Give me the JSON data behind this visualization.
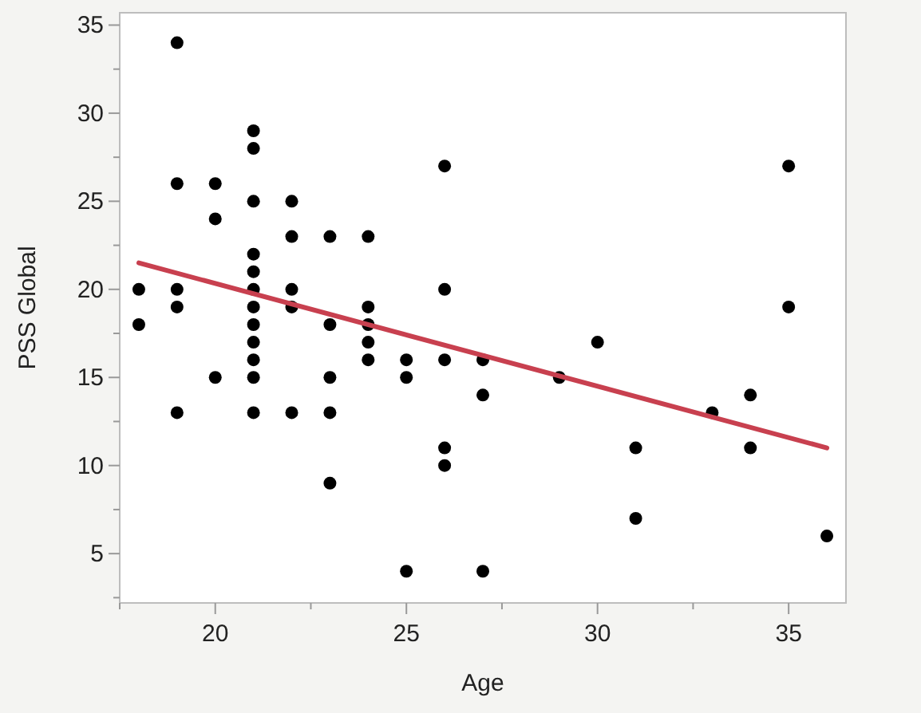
{
  "chart_data": {
    "type": "scatter",
    "xlabel": "Age",
    "ylabel": "PSS Global",
    "grid": false,
    "xlim": [
      17.5,
      36.5
    ],
    "ylim": [
      2.2,
      35.7
    ],
    "xticks": [
      {
        "value": 17.5,
        "label": null
      },
      20,
      {
        "value": 22.5,
        "label": null
      },
      25,
      {
        "value": 27.5,
        "label": null
      },
      30,
      {
        "value": 32.5,
        "label": null
      },
      35
    ],
    "yticks": [
      {
        "value": 2.5,
        "label": null
      },
      5,
      {
        "value": 7.5,
        "label": null
      },
      10,
      {
        "value": 12.5,
        "label": null
      },
      15,
      {
        "value": 17.5,
        "label": null
      },
      20,
      {
        "value": 22.5,
        "label": null
      },
      25,
      {
        "value": 27.5,
        "label": null
      },
      30,
      {
        "value": 32.5,
        "label": null
      },
      35
    ],
    "series": [
      {
        "marker": "circle",
        "color": "#000000",
        "x": [
          18,
          18,
          19,
          19,
          19,
          19,
          19,
          20,
          20,
          20,
          21,
          21,
          21,
          21,
          21,
          21,
          21,
          21,
          21,
          21,
          21,
          21,
          22,
          22,
          22,
          22,
          22,
          23,
          23,
          23,
          23,
          23,
          24,
          24,
          24,
          24,
          24,
          25,
          25,
          25,
          26,
          26,
          26,
          26,
          26,
          27,
          27,
          27,
          29,
          30,
          31,
          31,
          33,
          34,
          34,
          35,
          35,
          36
        ],
        "values": [
          20,
          18,
          34,
          26,
          20,
          19,
          13,
          26,
          24,
          15,
          29,
          28,
          25,
          22,
          21,
          20,
          19,
          18,
          17,
          16,
          15,
          13,
          25,
          23,
          20,
          19,
          13,
          23,
          18,
          15,
          13,
          9,
          23,
          19,
          18,
          17,
          16,
          16,
          15,
          4,
          27,
          20,
          16,
          11,
          10,
          16,
          14,
          4,
          15,
          17,
          11,
          7,
          13,
          14,
          11,
          27,
          19,
          6
        ]
      },
      {
        "type": "line",
        "color": "#c8404f",
        "x": [
          18,
          36
        ],
        "values": [
          21.5,
          11.0
        ]
      }
    ]
  }
}
